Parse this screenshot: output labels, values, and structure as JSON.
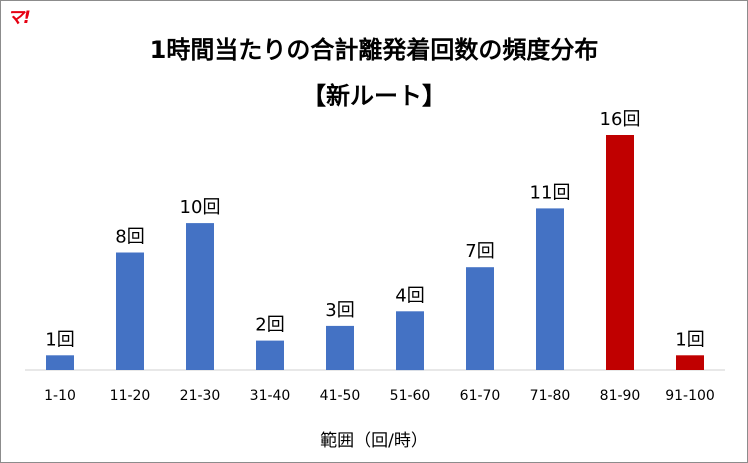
{
  "brand": {
    "logo_text": "マ!"
  },
  "chart_data": {
    "type": "bar",
    "title": "1時間当たりの合計離発着回数の頻度分布",
    "subtitle": "【新ルート】",
    "xlabel": "範囲（回/時）",
    "ylabel": "",
    "categories": [
      "1-10",
      "11-20",
      "21-30",
      "31-40",
      "41-50",
      "51-60",
      "61-70",
      "71-80",
      "81-90",
      "91-100"
    ],
    "values": [
      1,
      8,
      10,
      2,
      3,
      4,
      7,
      11,
      16,
      1
    ],
    "data_labels": [
      "1回",
      "8回",
      "10回",
      "2回",
      "3回",
      "4回",
      "7回",
      "11回",
      "16回",
      "1回"
    ],
    "bar_colors": [
      "#4472c4",
      "#4472c4",
      "#4472c4",
      "#4472c4",
      "#4472c4",
      "#4472c4",
      "#4472c4",
      "#4472c4",
      "#c00000",
      "#c00000"
    ],
    "ylim": [
      0,
      16
    ],
    "grid": false,
    "legend": "none"
  }
}
